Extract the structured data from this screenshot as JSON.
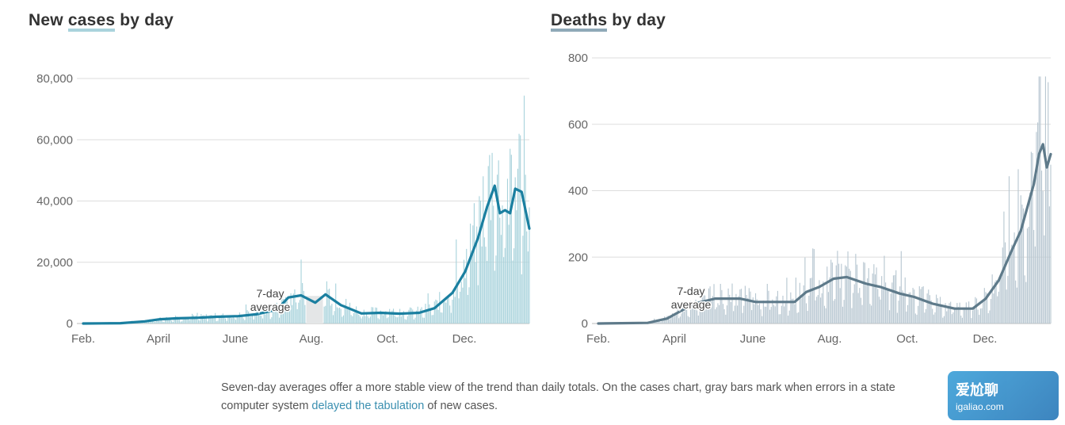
{
  "left_title": {
    "pre": "New ",
    "highlight": "cases",
    "post": " by day"
  },
  "right_title": {
    "pre": "",
    "highlight": "Deaths",
    "post": " by day"
  },
  "footnote": {
    "text1": "Seven-day averages offer a more stable view of the trend than daily totals. On the cases chart, gray bars mark when errors in a state computer system ",
    "link": "delayed the tabulation",
    "text2": " of new cases."
  },
  "watermark": {
    "line1": "爱尬聊",
    "line2": "igaliao.com"
  },
  "colors": {
    "cases_bar": "#a9d3dc",
    "cases_line": "#1a7fa0",
    "deaths_bar": "#b9c8d2",
    "deaths_line": "#5e7a8a",
    "error_bar": "#e4e6e7"
  },
  "chart_data": [
    {
      "type": "bar",
      "title": "New cases by day",
      "x_range": [
        "2020-02-01",
        "2021-01-14"
      ],
      "ylim": [
        0,
        80000
      ],
      "y_ticks": [
        0,
        20000,
        40000,
        60000,
        80000
      ],
      "y_tick_labels": [
        "0",
        "20,000",
        "40,000",
        "60,000",
        "80,000"
      ],
      "x_tick_labels": [
        "Feb.",
        "April",
        "June",
        "Aug.",
        "Oct.",
        "Dec."
      ],
      "grid": true,
      "annotation": [
        "7-day",
        "average"
      ],
      "error_period": [
        "2020-07-24",
        "2020-08-06"
      ],
      "series": [
        {
          "name": "7-day average",
          "points": [
            [
              "2020-02-01",
              0
            ],
            [
              "2020-03-01",
              100
            ],
            [
              "2020-03-20",
              700
            ],
            [
              "2020-04-01",
              1400
            ],
            [
              "2020-04-15",
              1700
            ],
            [
              "2020-05-01",
              1900
            ],
            [
              "2020-05-15",
              2200
            ],
            [
              "2020-06-01",
              2400
            ],
            [
              "2020-06-15",
              3000
            ],
            [
              "2020-07-01",
              4500
            ],
            [
              "2020-07-10",
              8500
            ],
            [
              "2020-07-20",
              9200
            ],
            [
              "2020-07-31",
              6800
            ],
            [
              "2020-08-08",
              9500
            ],
            [
              "2020-08-20",
              6000
            ],
            [
              "2020-09-05",
              3300
            ],
            [
              "2020-09-20",
              3500
            ],
            [
              "2020-10-05",
              3200
            ],
            [
              "2020-10-20",
              3500
            ],
            [
              "2020-11-01",
              5000
            ],
            [
              "2020-11-15",
              10000
            ],
            [
              "2020-11-25",
              17000
            ],
            [
              "2020-12-05",
              28000
            ],
            [
              "2020-12-12",
              38000
            ],
            [
              "2020-12-18",
              45000
            ],
            [
              "2020-12-22",
              36000
            ],
            [
              "2020-12-26",
              37000
            ],
            [
              "2020-12-30",
              36000
            ],
            [
              "2021-01-03",
              44000
            ],
            [
              "2021-01-08",
              43000
            ],
            [
              "2021-01-14",
              31000
            ]
          ]
        }
      ]
    },
    {
      "type": "bar",
      "title": "Deaths by day",
      "x_range": [
        "2020-02-01",
        "2021-01-14"
      ],
      "ylim": [
        0,
        800
      ],
      "y_ticks": [
        0,
        200,
        400,
        600,
        800
      ],
      "y_tick_labels": [
        "0",
        "200",
        "400",
        "600",
        "800"
      ],
      "x_tick_labels": [
        "Feb.",
        "April",
        "June",
        "Aug.",
        "Oct.",
        "Dec."
      ],
      "grid": true,
      "annotation": [
        "7-day",
        "average"
      ],
      "series": [
        {
          "name": "7-day average",
          "points": [
            [
              "2020-02-01",
              0
            ],
            [
              "2020-03-10",
              2
            ],
            [
              "2020-03-25",
              15
            ],
            [
              "2020-04-01",
              30
            ],
            [
              "2020-04-15",
              60
            ],
            [
              "2020-05-01",
              75
            ],
            [
              "2020-05-20",
              75
            ],
            [
              "2020-06-01",
              65
            ],
            [
              "2020-06-15",
              65
            ],
            [
              "2020-07-01",
              65
            ],
            [
              "2020-07-10",
              95
            ],
            [
              "2020-07-20",
              110
            ],
            [
              "2020-07-31",
              135
            ],
            [
              "2020-08-10",
              140
            ],
            [
              "2020-08-25",
              120
            ],
            [
              "2020-09-05",
              110
            ],
            [
              "2020-09-20",
              90
            ],
            [
              "2020-10-01",
              80
            ],
            [
              "2020-10-15",
              60
            ],
            [
              "2020-11-01",
              45
            ],
            [
              "2020-11-15",
              45
            ],
            [
              "2020-11-25",
              75
            ],
            [
              "2020-12-05",
              130
            ],
            [
              "2020-12-15",
              220
            ],
            [
              "2020-12-22",
              280
            ],
            [
              "2020-12-27",
              350
            ],
            [
              "2021-01-01",
              420
            ],
            [
              "2021-01-05",
              510
            ],
            [
              "2021-01-08",
              540
            ],
            [
              "2021-01-11",
              470
            ],
            [
              "2021-01-14",
              510
            ]
          ]
        }
      ]
    }
  ]
}
